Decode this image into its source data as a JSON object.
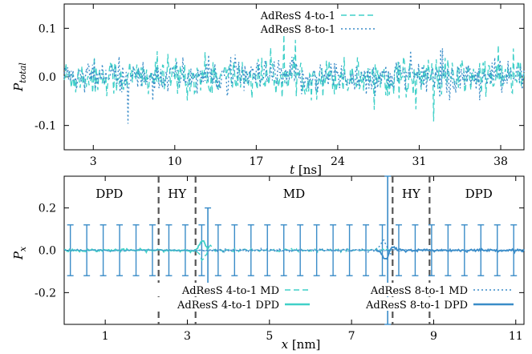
{
  "colors": {
    "ratio_4to1": "#40d0c8",
    "ratio_8to1": "#3a8cc8",
    "boundary": "#555555"
  },
  "chart_data": [
    {
      "type": "line",
      "xlabel_var": "t",
      "xlabel_unit": "[ns]",
      "ylabel_var": "P",
      "ylabel_sub": "total",
      "xlim": [
        0.5,
        40
      ],
      "ylim": [
        -0.15,
        0.15
      ],
      "xticks": [
        3,
        10,
        17,
        24,
        31,
        38
      ],
      "yticks": [
        -0.1,
        0.0,
        0.1
      ],
      "ytick_labels": [
        "-0.1",
        "0.0",
        "0.1"
      ],
      "legend_position": "top-center",
      "noise": {
        "amplitude": 0.02,
        "samples": 520
      },
      "series": [
        {
          "name": "AdResS 4-to-1",
          "style": "dashed",
          "color_key": "ratio_4to1"
        },
        {
          "name": "AdResS 8-to-1",
          "style": "dotted",
          "color_key": "ratio_8to1"
        }
      ]
    },
    {
      "type": "line",
      "xlabel_var": "x",
      "xlabel_unit": "[nm]",
      "ylabel_var": "P",
      "ylabel_sub": "x",
      "xlim": [
        0,
        11.2
      ],
      "ylim": [
        -0.35,
        0.35
      ],
      "xticks": [
        1,
        3,
        5,
        7,
        9,
        11
      ],
      "yticks": [
        -0.2,
        0.0,
        0.2
      ],
      "ytick_labels": [
        "-0.2",
        "0.0",
        "0.2"
      ],
      "regions": [
        {
          "label": "DPD",
          "x": 1.1
        },
        {
          "label": "HY",
          "x": 2.75
        },
        {
          "label": "MD",
          "x": 5.6
        },
        {
          "label": "HY",
          "x": 8.45
        },
        {
          "label": "DPD",
          "x": 10.1
        }
      ],
      "boundaries": [
        2.3,
        3.2,
        8.0,
        8.9
      ],
      "errorbars": {
        "x": [
          0.15,
          0.55,
          0.95,
          1.35,
          1.75,
          2.15,
          2.55,
          2.95,
          3.35,
          3.75,
          4.15,
          4.55,
          4.95,
          5.35,
          5.75,
          6.15,
          6.55,
          6.95,
          7.35,
          7.75,
          8.15,
          8.55,
          8.95,
          9.35,
          9.75,
          10.15,
          10.55,
          10.95
        ],
        "half_height": 0.12
      },
      "spikes": [
        {
          "x": 3.5,
          "low": -0.2,
          "high": 0.2
        },
        {
          "x": 7.88,
          "low": -0.35,
          "high": 0.35
        }
      ],
      "legend_position": "bottom",
      "series": [
        {
          "name": "AdResS 4-to-1 MD",
          "style": "dashed",
          "color_key": "ratio_4to1"
        },
        {
          "name": "AdResS 4-to-1 DPD",
          "style": "solid",
          "color_key": "ratio_4to1"
        },
        {
          "name": "AdResS 8-to-1 MD",
          "style": "dotted",
          "color_key": "ratio_8to1"
        },
        {
          "name": "AdResS 8-to-1 DPD",
          "style": "solid",
          "color_key": "ratio_8to1"
        }
      ]
    }
  ]
}
